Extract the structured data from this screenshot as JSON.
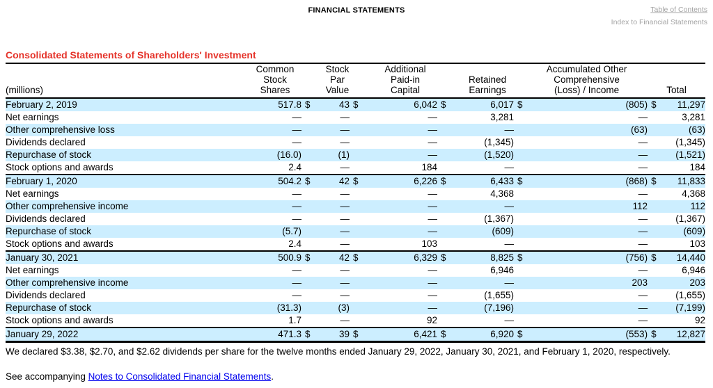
{
  "header": {
    "doc_label": "FINANCIAL STATEMENTS",
    "toc_link": "Table of Contents",
    "index_link": "Index to Financial Statements"
  },
  "title": "Consolidated Statements of Shareholders' Investment",
  "table": {
    "row_header": "(millions)",
    "columns": [
      "Common\nStock\nShares",
      "Stock\nPar\nValue",
      "Additional\nPaid-in\nCapital",
      "Retained\nEarnings",
      "Accumulated Other\nComprehensive\n(Loss) / Income",
      "Total"
    ],
    "currency_symbol": "$",
    "rows": [
      {
        "label": "February 2, 2019",
        "values": [
          "517.8",
          "43",
          "6,042",
          "6,017",
          "(805)",
          "11,297"
        ],
        "dollar": true
      },
      {
        "label": "Net earnings",
        "values": [
          "—",
          "—",
          "—",
          "3,281",
          "—",
          "3,281"
        ],
        "dollar": false
      },
      {
        "label": "Other comprehensive loss",
        "values": [
          "—",
          "—",
          "—",
          "—",
          "(63)",
          "(63)"
        ],
        "dollar": false
      },
      {
        "label": "Dividends declared",
        "values": [
          "—",
          "—",
          "—",
          "(1,345)",
          "—",
          "(1,345)"
        ],
        "dollar": false
      },
      {
        "label": "Repurchase of stock",
        "values": [
          "(16.0)",
          "(1)",
          "—",
          "(1,520)",
          "—",
          "(1,521)"
        ],
        "dollar": false
      },
      {
        "label": "Stock options and awards",
        "values": [
          "2.4",
          "—",
          "184",
          "—",
          "—",
          "184"
        ],
        "dollar": false
      },
      {
        "label": "February 1, 2020",
        "values": [
          "504.2",
          "42",
          "6,226",
          "6,433",
          "(868)",
          "11,833"
        ],
        "dollar": true
      },
      {
        "label": "Net earnings",
        "values": [
          "—",
          "—",
          "—",
          "4,368",
          "—",
          "4,368"
        ],
        "dollar": false
      },
      {
        "label": "Other comprehensive income",
        "values": [
          "—",
          "—",
          "—",
          "—",
          "112",
          "112"
        ],
        "dollar": false
      },
      {
        "label": "Dividends declared",
        "values": [
          "—",
          "—",
          "—",
          "(1,367)",
          "—",
          "(1,367)"
        ],
        "dollar": false
      },
      {
        "label": "Repurchase of stock",
        "values": [
          "(5.7)",
          "—",
          "—",
          "(609)",
          "—",
          "(609)"
        ],
        "dollar": false
      },
      {
        "label": "Stock options and awards",
        "values": [
          "2.4",
          "—",
          "103",
          "—",
          "—",
          "103"
        ],
        "dollar": false
      },
      {
        "label": "January 30, 2021",
        "values": [
          "500.9",
          "42",
          "6,329",
          "8,825",
          "(756)",
          "14,440"
        ],
        "dollar": true
      },
      {
        "label": "Net earnings",
        "values": [
          "—",
          "—",
          "—",
          "6,946",
          "—",
          "6,946"
        ],
        "dollar": false
      },
      {
        "label": "Other comprehensive income",
        "values": [
          "—",
          "—",
          "—",
          "—",
          "203",
          "203"
        ],
        "dollar": false
      },
      {
        "label": "Dividends declared",
        "values": [
          "—",
          "—",
          "—",
          "(1,655)",
          "—",
          "(1,655)"
        ],
        "dollar": false
      },
      {
        "label": "Repurchase of stock",
        "values": [
          "(31.3)",
          "(3)",
          "—",
          "(7,196)",
          "—",
          "(7,199)"
        ],
        "dollar": false
      },
      {
        "label": "Stock options and awards",
        "values": [
          "1.7",
          "—",
          "92",
          "—",
          "—",
          "92"
        ],
        "dollar": false
      },
      {
        "label": "January 29, 2022",
        "values": [
          "471.3",
          "39",
          "6,421",
          "6,920",
          "(553)",
          "12,827"
        ],
        "dollar": true
      }
    ]
  },
  "footnotes": {
    "dividends": "We declared $3.38, $2.70, and $2.62 dividends per share for the twelve months ended January 29, 2022, January 30, 2021, and February 1, 2020, respectively.",
    "accompanying_prefix": "See accompanying ",
    "accompanying_link": "Notes to Consolidated Financial Statements",
    "accompanying_suffix": "."
  },
  "colors": {
    "accent_red": "#e5332a",
    "row_highlight": "#cceeff",
    "link_blue": "#0000ee",
    "muted_gray": "#a3a3a3"
  }
}
